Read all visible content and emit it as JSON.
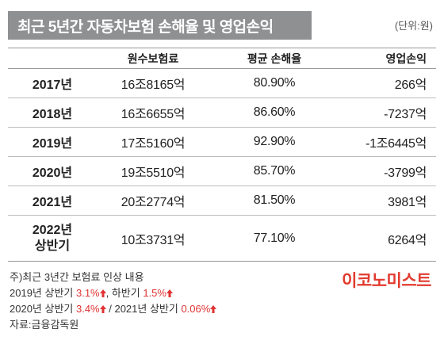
{
  "title": "최근 5년간 자동차보험 손해율 및 영업손익",
  "unit": "(단위:원)",
  "table": {
    "headers": [
      "",
      "원수보험료",
      "평균 손해율",
      "영업손익"
    ],
    "rows": [
      {
        "year": "2017년",
        "year2": "",
        "premium": "16조8165억",
        "loss_rate": "80.90%",
        "op_profit": "266억"
      },
      {
        "year": "2018년",
        "year2": "",
        "premium": "16조6655억",
        "loss_rate": "86.60%",
        "op_profit": "-7237억"
      },
      {
        "year": "2019년",
        "year2": "",
        "premium": "17조5160억",
        "loss_rate": "92.90%",
        "op_profit": "-1조6445억"
      },
      {
        "year": "2020년",
        "year2": "",
        "premium": "19조5510억",
        "loss_rate": "85.70%",
        "op_profit": "-3799억"
      },
      {
        "year": "2021년",
        "year2": "",
        "premium": "20조2774억",
        "loss_rate": "81.50%",
        "op_profit": "3981억"
      },
      {
        "year": "2022년",
        "year2": "상반기",
        "premium": "10조3731억",
        "loss_rate": "77.10%",
        "op_profit": "6264억"
      }
    ]
  },
  "notes": {
    "line1": "주)최근 3년간 보험료 인상 내용",
    "l2_a": "2019년 상반기 ",
    "l2_b": "3.1%",
    "l2_c": ", 하반기 ",
    "l2_d": "1.5%",
    "l3_a": "2020년 상반기 ",
    "l3_b": "3.4%",
    "l3_c": " / 2021년 상반기 ",
    "l3_d": "0.06%",
    "line4": "자료:금융감독원"
  },
  "logo": "이코노미스트",
  "colors": {
    "title_bg": "#8f9092",
    "accent_red": "#e03232",
    "logo_red": "#e23a2e"
  }
}
